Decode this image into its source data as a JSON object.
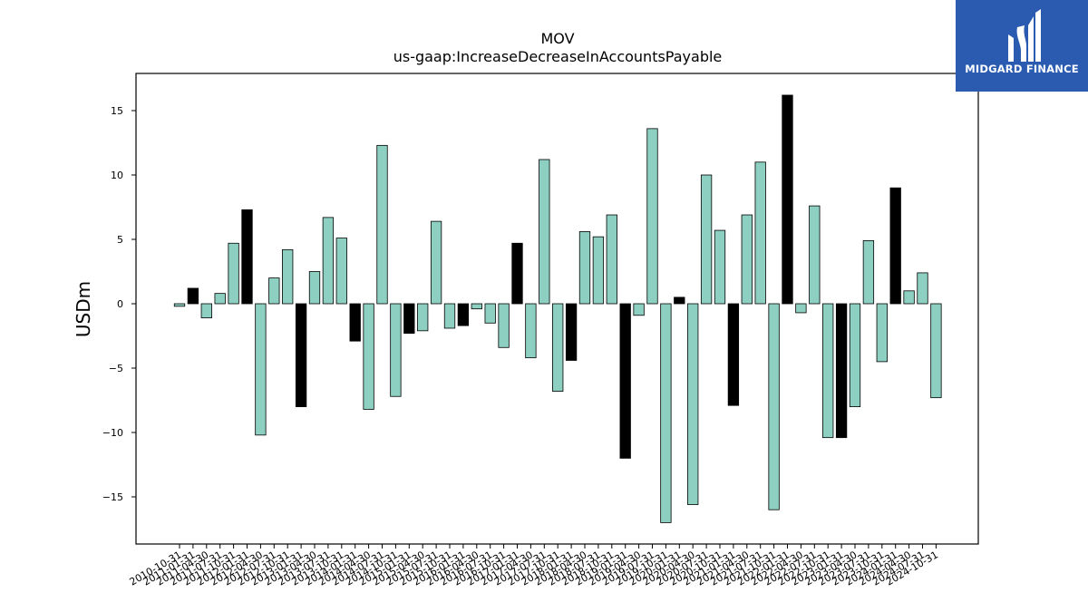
{
  "chart_data": {
    "type": "bar",
    "title": "MOV",
    "subtitle": "us-gaap:IncreaseDecreaseInAccountsPayable",
    "ylabel": "USDm",
    "xlabel": "",
    "ylim": [
      -18.5,
      18
    ],
    "yticks": [
      -15,
      -10,
      -5,
      0,
      5,
      10,
      15
    ],
    "grid": false,
    "colors": {
      "default": "#8dcfc1",
      "highlight": "#000000",
      "edge": "#000000"
    },
    "categories": [
      "2010-10-31",
      "2011-01-31",
      "2011-04-30",
      "2011-07-31",
      "2011-10-31",
      "2012-01-31",
      "2012-04-30",
      "2012-07-31",
      "2012-10-31",
      "2013-01-31",
      "2013-04-30",
      "2013-07-31",
      "2013-10-31",
      "2014-01-31",
      "2014-04-30",
      "2014-07-31",
      "2014-10-31",
      "2015-01-31",
      "2015-04-30",
      "2015-07-31",
      "2015-10-31",
      "2016-01-31",
      "2016-04-30",
      "2016-07-31",
      "2016-10-31",
      "2017-01-31",
      "2017-04-30",
      "2017-07-31",
      "2017-10-31",
      "2018-01-31",
      "2018-04-30",
      "2018-07-31",
      "2018-10-31",
      "2019-01-31",
      "2019-04-30",
      "2019-07-31",
      "2019-10-31",
      "2020-01-31",
      "2020-04-30",
      "2020-07-31",
      "2020-10-31",
      "2021-01-31",
      "2021-04-30",
      "2021-07-31",
      "2021-10-31",
      "2022-01-31",
      "2022-04-30",
      "2022-07-31",
      "2022-10-31",
      "2023-01-31",
      "2023-04-30",
      "2023-07-31",
      "2023-10-31",
      "2024-01-31",
      "2024-04-30",
      "2024-07-31",
      "2024-10-31"
    ],
    "values": [
      -0.2,
      1.2,
      -1.1,
      0.8,
      4.7,
      7.3,
      -10.2,
      2.0,
      4.2,
      -8.0,
      2.5,
      6.7,
      5.1,
      -2.9,
      -8.2,
      12.3,
      -7.2,
      -2.3,
      -2.1,
      6.4,
      -1.9,
      -1.7,
      -0.4,
      -1.5,
      -3.4,
      4.7,
      -4.2,
      11.2,
      -6.8,
      -4.4,
      5.6,
      5.2,
      6.9,
      -12.0,
      -0.9,
      13.6,
      -17.0,
      0.5,
      -15.6,
      10.0,
      5.7,
      -7.9,
      6.9,
      11.0,
      -16.0,
      16.2,
      -0.7,
      7.6,
      -10.4,
      -10.4,
      -8.0,
      4.9,
      -4.5,
      9.0,
      1.0,
      2.4,
      -7.3
    ],
    "highlight": [
      false,
      true,
      false,
      false,
      false,
      true,
      false,
      false,
      false,
      true,
      false,
      false,
      false,
      true,
      false,
      false,
      false,
      true,
      false,
      false,
      false,
      true,
      false,
      false,
      false,
      true,
      false,
      false,
      false,
      true,
      false,
      false,
      false,
      true,
      false,
      false,
      false,
      true,
      false,
      false,
      false,
      true,
      false,
      false,
      false,
      true,
      false,
      false,
      false,
      true,
      false,
      false,
      false,
      true,
      false,
      false,
      false
    ]
  },
  "logo": {
    "text": "MIDGARD FINANCE",
    "icon": "midgard-logo-icon",
    "color": "#2a5bb0"
  }
}
